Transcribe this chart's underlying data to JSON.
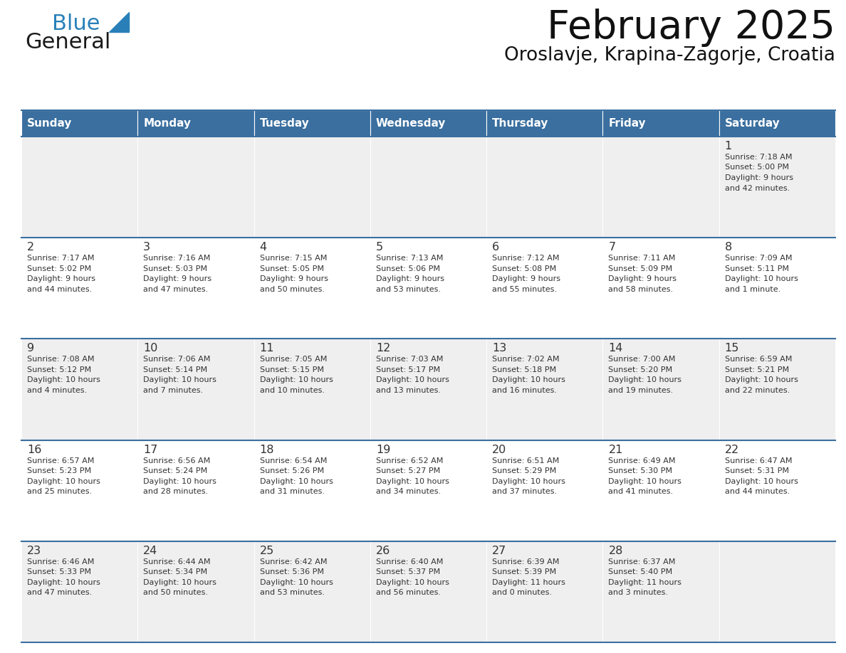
{
  "title": "February 2025",
  "subtitle": "Oroslavje, Krapina-Zagorje, Croatia",
  "header_color": "#3a6f9f",
  "header_text_color": "#ffffff",
  "row0_bg": "#efefef",
  "row1_bg": "#ffffff",
  "row2_bg": "#efefef",
  "row3_bg": "#ffffff",
  "row4_bg": "#efefef",
  "divider_color": "#3a6f9f",
  "text_color": "#333333",
  "day_number_color": "#333333",
  "weekdays": [
    "Sunday",
    "Monday",
    "Tuesday",
    "Wednesday",
    "Thursday",
    "Friday",
    "Saturday"
  ],
  "days": [
    {
      "day": 1,
      "col": 6,
      "row": 0,
      "sunrise": "7:18 AM",
      "sunset": "5:00 PM",
      "daylight": "9 hours and 42 minutes."
    },
    {
      "day": 2,
      "col": 0,
      "row": 1,
      "sunrise": "7:17 AM",
      "sunset": "5:02 PM",
      "daylight": "9 hours and 44 minutes."
    },
    {
      "day": 3,
      "col": 1,
      "row": 1,
      "sunrise": "7:16 AM",
      "sunset": "5:03 PM",
      "daylight": "9 hours and 47 minutes."
    },
    {
      "day": 4,
      "col": 2,
      "row": 1,
      "sunrise": "7:15 AM",
      "sunset": "5:05 PM",
      "daylight": "9 hours and 50 minutes."
    },
    {
      "day": 5,
      "col": 3,
      "row": 1,
      "sunrise": "7:13 AM",
      "sunset": "5:06 PM",
      "daylight": "9 hours and 53 minutes."
    },
    {
      "day": 6,
      "col": 4,
      "row": 1,
      "sunrise": "7:12 AM",
      "sunset": "5:08 PM",
      "daylight": "9 hours and 55 minutes."
    },
    {
      "day": 7,
      "col": 5,
      "row": 1,
      "sunrise": "7:11 AM",
      "sunset": "5:09 PM",
      "daylight": "9 hours and 58 minutes."
    },
    {
      "day": 8,
      "col": 6,
      "row": 1,
      "sunrise": "7:09 AM",
      "sunset": "5:11 PM",
      "daylight": "10 hours and 1 minute."
    },
    {
      "day": 9,
      "col": 0,
      "row": 2,
      "sunrise": "7:08 AM",
      "sunset": "5:12 PM",
      "daylight": "10 hours and 4 minutes."
    },
    {
      "day": 10,
      "col": 1,
      "row": 2,
      "sunrise": "7:06 AM",
      "sunset": "5:14 PM",
      "daylight": "10 hours and 7 minutes."
    },
    {
      "day": 11,
      "col": 2,
      "row": 2,
      "sunrise": "7:05 AM",
      "sunset": "5:15 PM",
      "daylight": "10 hours and 10 minutes."
    },
    {
      "day": 12,
      "col": 3,
      "row": 2,
      "sunrise": "7:03 AM",
      "sunset": "5:17 PM",
      "daylight": "10 hours and 13 minutes."
    },
    {
      "day": 13,
      "col": 4,
      "row": 2,
      "sunrise": "7:02 AM",
      "sunset": "5:18 PM",
      "daylight": "10 hours and 16 minutes."
    },
    {
      "day": 14,
      "col": 5,
      "row": 2,
      "sunrise": "7:00 AM",
      "sunset": "5:20 PM",
      "daylight": "10 hours and 19 minutes."
    },
    {
      "day": 15,
      "col": 6,
      "row": 2,
      "sunrise": "6:59 AM",
      "sunset": "5:21 PM",
      "daylight": "10 hours and 22 minutes."
    },
    {
      "day": 16,
      "col": 0,
      "row": 3,
      "sunrise": "6:57 AM",
      "sunset": "5:23 PM",
      "daylight": "10 hours and 25 minutes."
    },
    {
      "day": 17,
      "col": 1,
      "row": 3,
      "sunrise": "6:56 AM",
      "sunset": "5:24 PM",
      "daylight": "10 hours and 28 minutes."
    },
    {
      "day": 18,
      "col": 2,
      "row": 3,
      "sunrise": "6:54 AM",
      "sunset": "5:26 PM",
      "daylight": "10 hours and 31 minutes."
    },
    {
      "day": 19,
      "col": 3,
      "row": 3,
      "sunrise": "6:52 AM",
      "sunset": "5:27 PM",
      "daylight": "10 hours and 34 minutes."
    },
    {
      "day": 20,
      "col": 4,
      "row": 3,
      "sunrise": "6:51 AM",
      "sunset": "5:29 PM",
      "daylight": "10 hours and 37 minutes."
    },
    {
      "day": 21,
      "col": 5,
      "row": 3,
      "sunrise": "6:49 AM",
      "sunset": "5:30 PM",
      "daylight": "10 hours and 41 minutes."
    },
    {
      "day": 22,
      "col": 6,
      "row": 3,
      "sunrise": "6:47 AM",
      "sunset": "5:31 PM",
      "daylight": "10 hours and 44 minutes."
    },
    {
      "day": 23,
      "col": 0,
      "row": 4,
      "sunrise": "6:46 AM",
      "sunset": "5:33 PM",
      "daylight": "10 hours and 47 minutes."
    },
    {
      "day": 24,
      "col": 1,
      "row": 4,
      "sunrise": "6:44 AM",
      "sunset": "5:34 PM",
      "daylight": "10 hours and 50 minutes."
    },
    {
      "day": 25,
      "col": 2,
      "row": 4,
      "sunrise": "6:42 AM",
      "sunset": "5:36 PM",
      "daylight": "10 hours and 53 minutes."
    },
    {
      "day": 26,
      "col": 3,
      "row": 4,
      "sunrise": "6:40 AM",
      "sunset": "5:37 PM",
      "daylight": "10 hours and 56 minutes."
    },
    {
      "day": 27,
      "col": 4,
      "row": 4,
      "sunrise": "6:39 AM",
      "sunset": "5:39 PM",
      "daylight": "11 hours and 0 minutes."
    },
    {
      "day": 28,
      "col": 5,
      "row": 4,
      "sunrise": "6:37 AM",
      "sunset": "5:40 PM",
      "daylight": "11 hours and 3 minutes."
    }
  ],
  "logo_text1": "General",
  "logo_text2": "Blue",
  "logo_color1": "#1a1a1a",
  "logo_color2": "#2980b9",
  "logo_triangle_color": "#2980b9",
  "row_bg_colors": [
    "#efefef",
    "#ffffff",
    "#efefef",
    "#ffffff",
    "#efefef"
  ]
}
